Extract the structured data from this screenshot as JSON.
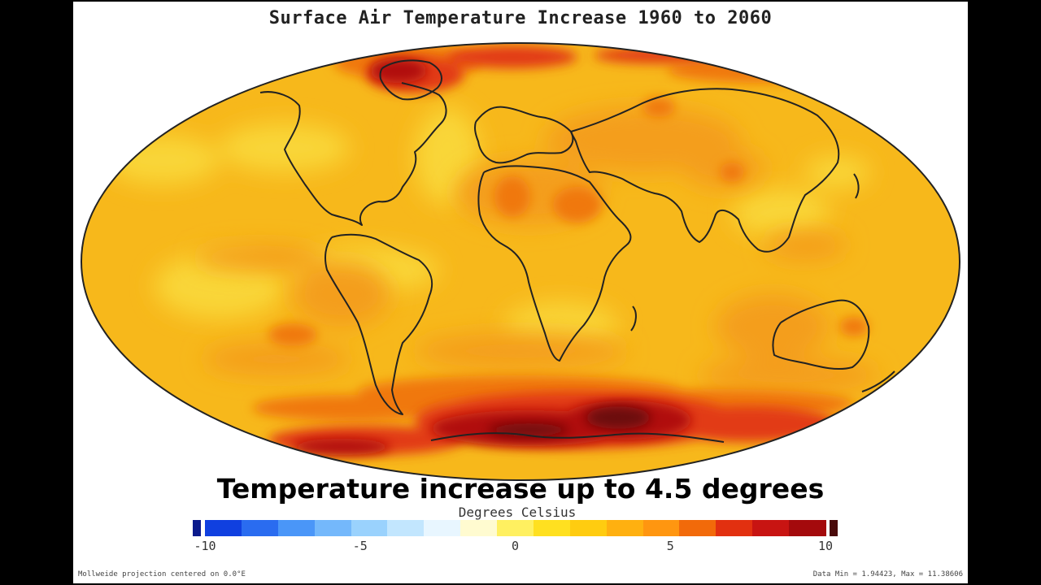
{
  "title": "Surface Air Temperature Increase 1960 to 2060",
  "caption": "Temperature increase up to 4.5 degrees",
  "legend": {
    "label": "Degrees Celsius",
    "ticks": [
      "-10",
      "-5",
      "0",
      "5",
      "10"
    ],
    "colors": [
      "#0b1a8c",
      "#1040e0",
      "#2a6cf0",
      "#4a96f8",
      "#74b8fb",
      "#9ad2fd",
      "#c2e6fe",
      "#e8f6ff",
      "#fffbd0",
      "#fff060",
      "#ffe020",
      "#ffcc10",
      "#ffb010",
      "#ff9610",
      "#f26a0a",
      "#e23010",
      "#c81412",
      "#a40a0c",
      "#4a0a0a"
    ]
  },
  "footer": {
    "left": "Mollweide projection centered on 0.0°E",
    "right": "Data Min = 1.94423, Max = 11.38606"
  },
  "map": {
    "projection": "Mollweide",
    "data_min": 1.94423,
    "data_max": 11.38606,
    "colors": {
      "ocean_base": "#f7b81b",
      "light": "#f9d638",
      "warm": "#f49e1e",
      "hot": "#f07810",
      "very_hot": "#e23a12",
      "extreme": "#b01010",
      "darkest": "#6a0808",
      "coastline": "#222222"
    }
  }
}
